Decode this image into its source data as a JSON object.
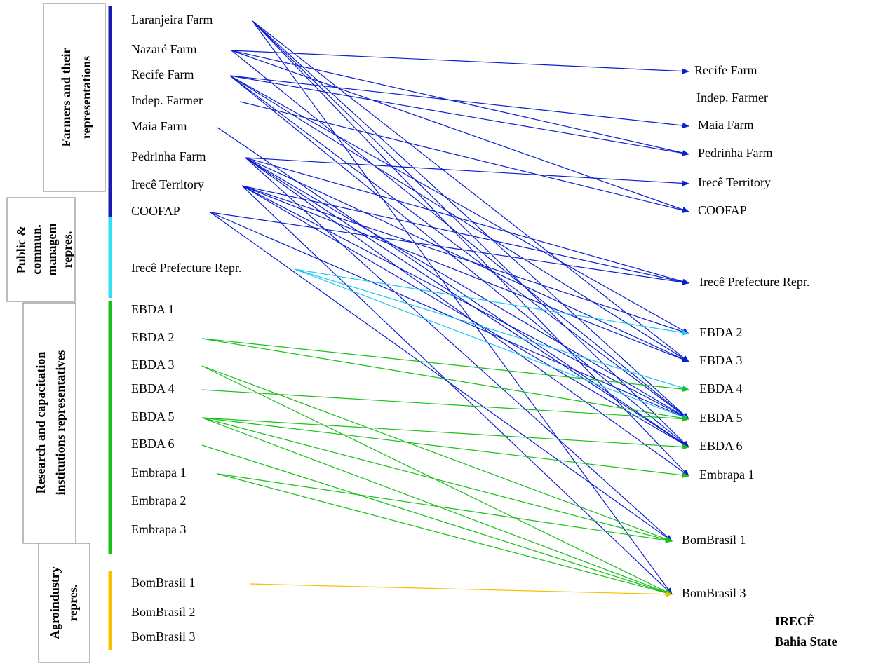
{
  "groups": [
    {
      "lines": [
        "Farmers and their",
        "representations"
      ]
    },
    {
      "lines": [
        "Public &",
        "commun.",
        "managem",
        "repres."
      ]
    },
    {
      "lines": [
        "Research and capacitation",
        "institutions representatives"
      ]
    },
    {
      "lines": [
        "Agroindustry",
        "repres."
      ]
    }
  ],
  "left_nodes": [
    "Laranjeira Farm",
    "Nazaré Farm",
    "Recife Farm",
    "Indep. Farmer",
    "Maia Farm",
    "Pedrinha Farm",
    "Irecê Territory",
    "COOFAP",
    "Irecê Prefecture Repr.",
    "EBDA 1",
    "EBDA 2",
    "EBDA 3",
    "EBDA 4",
    "EBDA 5",
    "EBDA 6",
    "Embrapa 1",
    "Embrapa 2",
    "Embrapa 3",
    "BomBrasil 1",
    "BomBrasil 2",
    "BomBrasil 3"
  ],
  "right_nodes": [
    "Recife Farm",
    "Indep. Farmer",
    "Maia Farm",
    "Pedrinha Farm",
    "Irecê Territory",
    "COOFAP",
    "Irecê Prefecture Repr.",
    "EBDA 2",
    "EBDA 3",
    "EBDA 4",
    "EBDA 5",
    "EBDA 6",
    "Embrapa 1",
    "BomBrasil 1",
    "BomBrasil 3"
  ],
  "footer": {
    "place": "IRECÊ",
    "state": "Bahia State"
  }
}
